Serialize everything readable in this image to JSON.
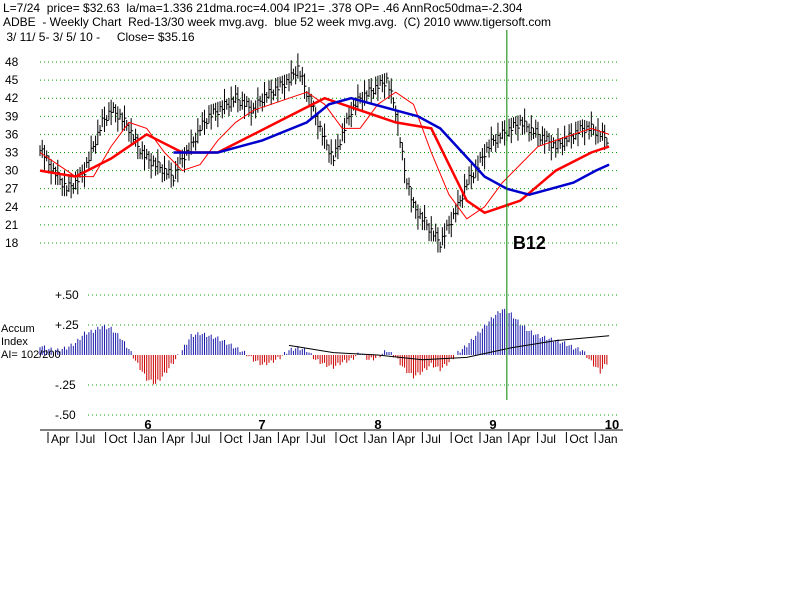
{
  "header": {
    "line1": "L=7/24  price= $32.63  la/ma=1.336 21dma.roc=4.004 IP21= .378 OP= .46 AnnRoc50dma=-2.304",
    "line2": "ADBE  - Weekly Chart  Red-13/30 week mvg.avg.  blue 52 week mvg.avg.  (C) 2010 www.tigersoft.com",
    "line3": " 3/ 11/ 5- 3/ 5/ 10 -     Close= $35.16"
  },
  "colors": {
    "price_bar": "#000000",
    "ma13": "#ff0000",
    "ma30": "#ff0000",
    "ma52": "#0000cc",
    "ai_positive": "#1a1aaa",
    "ai_negative": "#cc0000",
    "ai_ma": "#000000",
    "signal_line": "#008000",
    "grid": "#00a000"
  },
  "chart_data": [
    {
      "type": "ohlc",
      "title": "ADBE - Weekly Chart",
      "ylim": [
        16,
        50
      ],
      "y_ticks": [
        18,
        21,
        24,
        27,
        30,
        33,
        36,
        39,
        42,
        45,
        48
      ],
      "grid": "dotted horizontal",
      "x_year_labels": [
        "6",
        "7",
        "8",
        "9",
        "10"
      ],
      "x_month_labels": [
        "Apr",
        "Jul",
        "Oct",
        "Jan",
        "Apr",
        "Jul",
        "Oct",
        "Jan",
        "Apr",
        "Jul",
        "Oct",
        "Jan",
        "Apr",
        "Jul",
        "Oct",
        "Jan",
        "Apr",
        "Jul",
        "Oct",
        "Jan"
      ],
      "series": [
        {
          "name": "price",
          "x": [
            0,
            4,
            8,
            12,
            16,
            20,
            24,
            28,
            32,
            36,
            40,
            44,
            48,
            52,
            56,
            60,
            64,
            68,
            72,
            76,
            80,
            84,
            88,
            92,
            96,
            100,
            104,
            108,
            112,
            116,
            120,
            124,
            128,
            132,
            136,
            140,
            144,
            148,
            152,
            156,
            160,
            164,
            168,
            172,
            176,
            180,
            184,
            188,
            192,
            196,
            200,
            204,
            208,
            212,
            216,
            220,
            224,
            228,
            232,
            236,
            240,
            244,
            248,
            252,
            256
          ],
          "y": [
            34,
            31,
            29,
            27,
            28,
            30,
            34,
            38,
            40,
            39,
            37,
            34,
            32,
            31,
            30,
            29,
            32,
            34,
            37,
            39,
            40,
            41,
            42,
            41,
            40,
            42,
            43,
            44,
            45,
            47,
            43,
            39,
            35,
            32,
            36,
            40,
            42,
            43,
            44,
            45,
            40,
            30,
            24,
            22,
            20,
            18,
            21,
            24,
            28,
            30,
            33,
            35,
            36,
            37,
            38,
            37,
            36,
            35,
            34,
            35,
            36,
            37,
            37,
            36,
            35
          ]
        },
        {
          "name": "Red-13",
          "x": [
            0,
            8,
            16,
            24,
            32,
            40,
            48,
            56,
            64,
            72,
            80,
            88,
            96,
            104,
            112,
            120,
            128,
            136,
            144,
            152,
            160,
            168,
            176,
            184,
            192,
            200,
            208,
            216,
            224,
            232,
            240,
            248,
            256
          ],
          "y": [
            33,
            31,
            29,
            29,
            34,
            38,
            37,
            33,
            30,
            31,
            35,
            38,
            40,
            41,
            42,
            43,
            41,
            37,
            37,
            41,
            43,
            41,
            33,
            26,
            22,
            24,
            28,
            31,
            34,
            35,
            36,
            37,
            36
          ]
        },
        {
          "name": "Red-30",
          "x": [
            0,
            16,
            32,
            48,
            64,
            80,
            96,
            112,
            128,
            144,
            160,
            176,
            184,
            192,
            200,
            216,
            232,
            248,
            256
          ],
          "y": [
            30,
            29,
            32,
            36,
            33,
            33,
            36,
            39,
            42,
            40,
            38,
            37,
            31,
            25,
            23,
            25,
            30,
            33,
            34
          ]
        },
        {
          "name": "blue 52",
          "x": [
            60,
            80,
            100,
            120,
            130,
            140,
            150,
            160,
            170,
            180,
            190,
            200,
            210,
            220,
            230,
            240,
            250,
            256
          ],
          "y": [
            33,
            33,
            35,
            38,
            41,
            42,
            41,
            40,
            39,
            37,
            33,
            29,
            27,
            26,
            27,
            28,
            30,
            31
          ]
        }
      ]
    },
    {
      "type": "bar",
      "title": "Accum Index",
      "ylabel": "AI= 102/200",
      "ylim": [
        -0.5,
        0.5
      ],
      "y_ticks": [
        "+.50",
        "+.25",
        "-.25",
        "-.50"
      ],
      "series": [
        {
          "name": "Accum Index",
          "x": [
            0,
            4,
            8,
            12,
            16,
            20,
            24,
            28,
            32,
            36,
            40,
            44,
            48,
            52,
            56,
            60,
            64,
            68,
            72,
            76,
            80,
            84,
            88,
            92,
            96,
            100,
            104,
            108,
            112,
            116,
            120,
            124,
            128,
            132,
            136,
            140,
            144,
            148,
            152,
            156,
            160,
            164,
            168,
            172,
            176,
            180,
            184,
            188,
            192,
            196,
            200,
            204,
            208,
            212,
            216,
            220,
            224,
            228,
            232,
            236,
            240,
            244,
            248,
            252,
            256
          ],
          "y": [
            0.08,
            0.05,
            0.04,
            0.06,
            0.1,
            0.18,
            0.2,
            0.24,
            0.22,
            0.15,
            0.05,
            -0.08,
            -0.2,
            -0.24,
            -0.16,
            -0.06,
            0.04,
            0.16,
            0.18,
            0.16,
            0.14,
            0.1,
            0.06,
            0.02,
            -0.04,
            -0.08,
            -0.06,
            -0.02,
            0.04,
            0.06,
            0.04,
            -0.04,
            -0.08,
            -0.1,
            -0.06,
            -0.04,
            0.02,
            -0.04,
            -0.02,
            0.04,
            -0.02,
            -0.12,
            -0.18,
            -0.14,
            -0.08,
            -0.12,
            -0.06,
            0.02,
            0.08,
            0.16,
            0.24,
            0.32,
            0.38,
            0.34,
            0.26,
            0.2,
            0.16,
            0.14,
            0.12,
            0.1,
            0.06,
            0.04,
            -0.06,
            -0.14,
            -0.04
          ]
        },
        {
          "name": "AI mvg.avg.",
          "x": [
            112,
            132,
            152,
            172,
            192,
            212,
            232,
            256
          ],
          "y": [
            0.08,
            0.02,
            0.0,
            -0.04,
            -0.02,
            0.06,
            0.12,
            0.16
          ]
        }
      ]
    }
  ],
  "annotations": {
    "signal_label": "B12",
    "signal_x": 210,
    "side_label_1": "Accum",
    "side_label_2": "Index",
    "side_label_3": "AI= 102/200"
  }
}
